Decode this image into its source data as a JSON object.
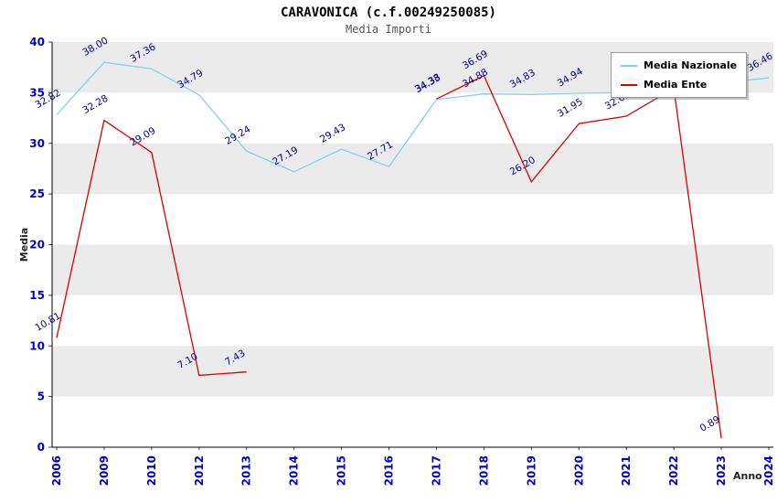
{
  "title": "CARAVONICA (c.f.00249250085)",
  "subtitle": "Media Importi",
  "colors": {
    "band_gray": "#EBEBEB",
    "axis_text": "#0000CC",
    "point_label": "#00008B",
    "axis_line": "#000000",
    "media_nazionale": "#87CEEB",
    "media_ente": "#E00000"
  },
  "chart_data": {
    "type": "line",
    "title": "CARAVONICA (c.f.00249250085)",
    "subtitle": "Media Importi",
    "xlabel": "Anno",
    "ylabel": "Media",
    "ylim": [
      0,
      40
    ],
    "ytick_step": 5,
    "grid": "alternating-horizontal-bands",
    "legend_position": "top-right",
    "categories": [
      "2006",
      "2009",
      "2010",
      "2012",
      "2013",
      "2014",
      "2015",
      "2016",
      "2017",
      "2018",
      "2019",
      "2020",
      "2021",
      "2022",
      "2023",
      "2024"
    ],
    "series": [
      {
        "name": "Media Nazionale",
        "color": "#87CEEB",
        "values": [
          32.82,
          38.0,
          37.36,
          34.79,
          29.24,
          27.19,
          29.43,
          27.71,
          34.33,
          34.88,
          34.83,
          34.94,
          35.0,
          35.3,
          36.0,
          36.46
        ],
        "labels": [
          "32.82",
          "38.00",
          "37.36",
          "34.79",
          "29.24",
          "27.19",
          "29.43",
          "27.71",
          "34.33",
          "34.88",
          "34.83",
          "34.94",
          null,
          null,
          null,
          "36.46"
        ]
      },
      {
        "name": "Media Ente",
        "color": "#E00000",
        "values": [
          10.81,
          32.28,
          29.09,
          7.1,
          7.43,
          null,
          null,
          null,
          34.38,
          36.69,
          26.2,
          31.95,
          32.69,
          35.45,
          0.89,
          null
        ],
        "labels": [
          "10.81",
          "32.28",
          "29.09",
          "7.10",
          "7.43",
          null,
          null,
          null,
          "34.38",
          "36.69",
          "26.20",
          "31.95",
          "32.69",
          null,
          "0.89",
          null
        ]
      }
    ]
  }
}
